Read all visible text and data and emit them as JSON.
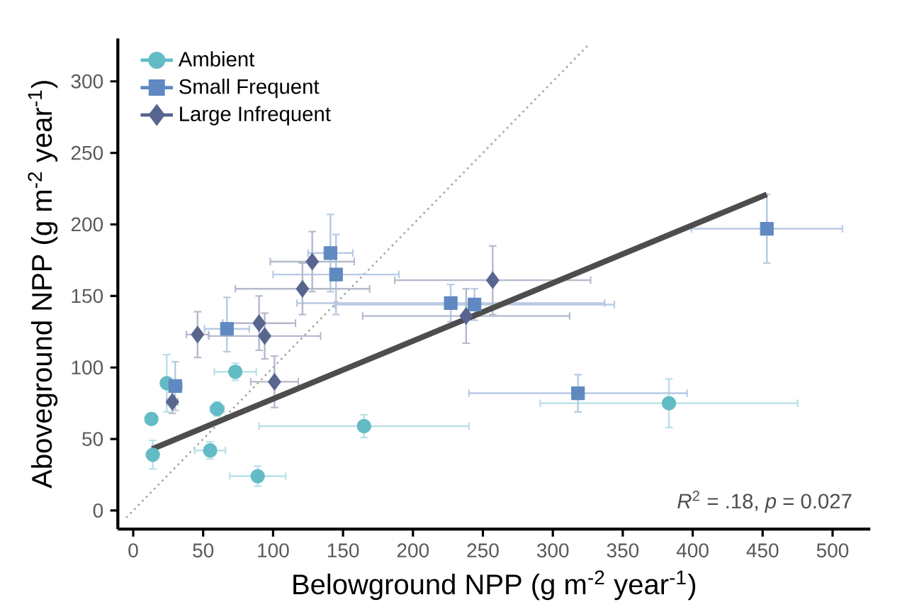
{
  "chart_data": {
    "type": "scatter",
    "xlabel": "Belowground NPP (g m$^{-2}$ year$^{-1}$)",
    "ylabel": "Aboveground NPP (g m$^{-2}$ year$^{-1}$)",
    "xlim": [
      -11,
      527
    ],
    "ylim": [
      -13,
      330
    ],
    "xticks": [
      0,
      50,
      100,
      150,
      200,
      250,
      300,
      350,
      400,
      450,
      500
    ],
    "yticks": [
      0,
      50,
      100,
      150,
      200,
      250,
      300
    ],
    "grid": false,
    "legend": "top left",
    "annotations": [
      "*R*$^{2}$ = .18, *p* = 0.027"
    ],
    "series": [
      {
        "name": "Ambient",
        "color": "#62bbc5",
        "marker": "circle",
        "x": [
          14,
          13,
          24,
          60,
          73,
          55,
          89,
          165,
          383
        ],
        "values": [
          39,
          64,
          89,
          71,
          97,
          42,
          24,
          59,
          75
        ],
        "errors": [
          10,
          4,
          20,
          5,
          6,
          6,
          7,
          8,
          17
        ],
        "xerrors": [
          3,
          3,
          4,
          5,
          15,
          11,
          20,
          75,
          92
        ]
      },
      {
        "name": "Small Frequent",
        "color": "#5f89c0",
        "marker": "square",
        "x": [
          30,
          67,
          141,
          145,
          227,
          244,
          318,
          453
        ],
        "values": [
          87,
          127,
          180,
          165,
          145,
          144,
          82,
          197
        ],
        "errors": [
          17,
          [
            111,
            149
          ],
          27,
          28,
          13,
          11,
          13,
          24
        ],
        "xerrors": [
          5,
          16,
          16,
          45,
          110,
          100,
          78,
          54
        ]
      },
      {
        "name": "Large Infrequent",
        "color": "#58658e",
        "marker": "diamond",
        "x": [
          28,
          46,
          90,
          94,
          101,
          121,
          128,
          257,
          238
        ],
        "values": [
          76,
          123,
          131,
          122,
          90,
          155,
          174,
          161,
          136
        ],
        "errors": [
          8,
          16,
          19,
          16,
          18,
          18,
          21,
          24,
          19
        ],
        "xerrors": [
          4,
          8,
          26,
          40,
          17,
          48,
          30,
          70,
          74
        ]
      },
      {
        "type": "line",
        "color": "#a6a6a6",
        "line_style": "dotted",
        "marker": "none",
        "x": [
          -5,
          325
        ],
        "values": [
          -5,
          325
        ]
      },
      {
        "type": "line",
        "color": "#4d4d4d",
        "line_style": "solid",
        "marker": "none",
        "x": [
          13.5,
          453
        ],
        "values": [
          43,
          221
        ]
      }
    ]
  }
}
